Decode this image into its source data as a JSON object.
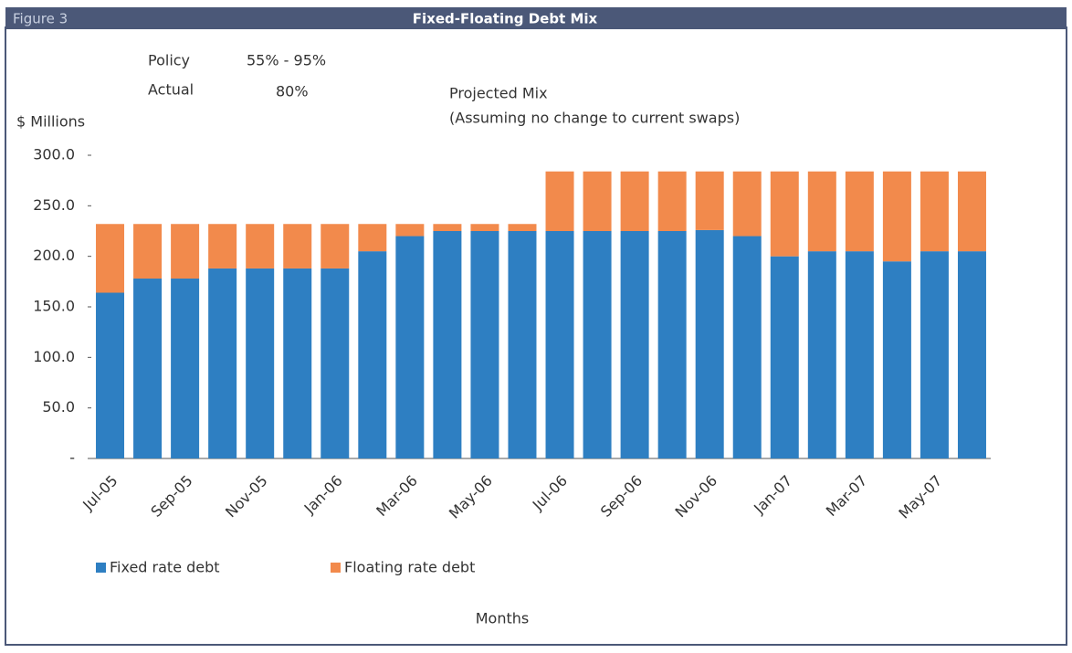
{
  "header": "Figure 3",
  "chart_data": {
    "type": "stacked_bar",
    "title": "Fixed-Floating Debt Mix",
    "annotations": [
      "Policy",
      "55% - 95%",
      "Actual",
      "80%",
      "Projected Mix",
      "(Assuming no change to current swaps)"
    ],
    "ylabel": "$ Millions",
    "xlabel": "Months",
    "categories": [
      "Jul-05",
      null,
      "Sep-05",
      null,
      "Nov-05",
      null,
      "Jan-06",
      null,
      "Mar-06",
      null,
      "May-06",
      null,
      "Jul-06",
      null,
      "Sep-06",
      null,
      "Nov-06",
      null,
      "Jan-07",
      null,
      "Mar-07",
      null,
      "May-07",
      null
    ],
    "series": [
      {
        "name": "Fixed rate debt",
        "color": "#2e7fc2",
        "values": [
          164,
          178,
          178,
          188,
          188,
          188,
          188,
          205,
          220,
          225,
          225,
          225,
          225,
          225,
          225,
          225,
          226,
          220,
          200,
          205,
          205,
          195,
          205,
          205
        ]
      },
      {
        "name": "Floating rate debt",
        "color": "#f28a4c",
        "values": [
          68,
          54,
          54,
          44,
          44,
          44,
          44,
          27,
          12,
          7,
          7,
          7,
          59,
          59,
          59,
          59,
          58,
          64,
          84,
          79,
          79,
          89,
          79,
          79
        ]
      }
    ],
    "ylim": [
      0,
      300
    ],
    "yticks": [
      {
        "value": 0,
        "label": "-"
      },
      {
        "value": 50,
        "label": "50.0"
      },
      {
        "value": 100,
        "label": "100.0"
      },
      {
        "value": 150,
        "label": "150.0"
      },
      {
        "value": 200,
        "label": "200.0"
      },
      {
        "value": 250,
        "label": "250.0"
      },
      {
        "value": 300,
        "label": "300.0"
      }
    ],
    "legend": "bottom-left"
  }
}
